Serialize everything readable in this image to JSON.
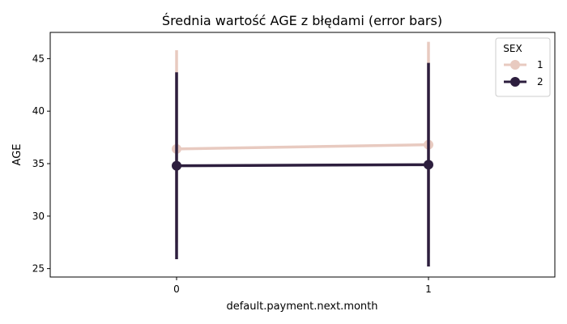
{
  "chart_data": {
    "type": "line",
    "title": "Średnia wartość AGE z błędami (error bars)",
    "xlabel": "default.payment.next.month",
    "ylabel": "AGE",
    "categories": [
      "0",
      "1"
    ],
    "ylim": [
      24.2,
      47.5
    ],
    "yticks": [
      25,
      30,
      35,
      40,
      45
    ],
    "grid": false,
    "legend": {
      "title": "SEX",
      "placement": "top-right"
    },
    "series": [
      {
        "name": "1",
        "color": "#e8cac0",
        "values": [
          36.4,
          36.8
        ],
        "err_low": [
          27.5,
          26.5
        ],
        "err_high": [
          45.8,
          46.6
        ]
      },
      {
        "name": "2",
        "color": "#2d1e3e",
        "values": [
          34.8,
          34.9
        ],
        "err_low": [
          25.9,
          25.2
        ],
        "err_high": [
          43.7,
          44.6
        ]
      }
    ]
  }
}
